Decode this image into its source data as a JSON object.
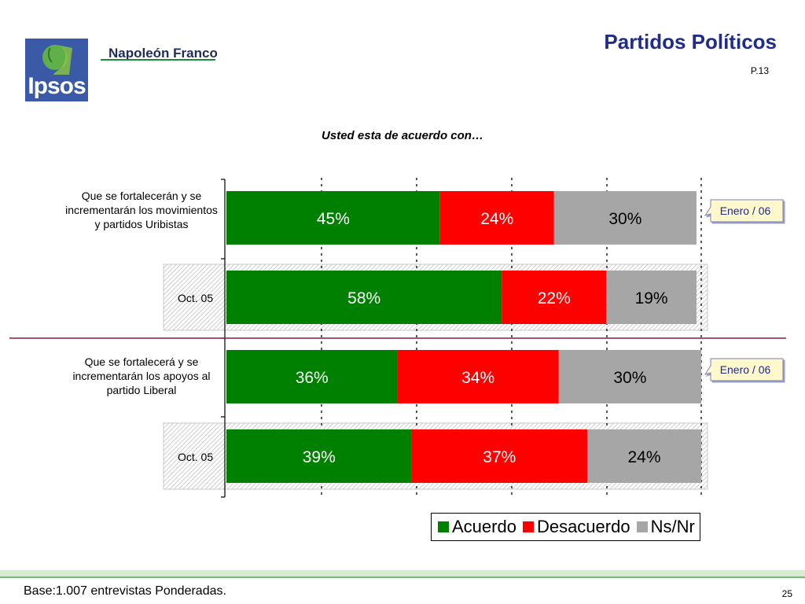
{
  "header": {
    "title": "Partidos Políticos",
    "page_ref": "P.13",
    "brand": "Napoleón Franco",
    "logo_text": "Ipsos"
  },
  "colors": {
    "acuerdo": "#008000",
    "desacuerdo": "#ff0000",
    "nsnr": "#a6a6a6",
    "title": "#1f2c8a",
    "callout": "#fff8cc"
  },
  "chart_data": {
    "type": "bar",
    "orientation": "horizontal",
    "stacked": true,
    "title": "Usted esta de acuerdo con…",
    "xlim": [
      0,
      100
    ],
    "legend_position": "bottom-right",
    "series_names": [
      "Acuerdo",
      "Desacuerdo",
      "Ns/Nr"
    ],
    "rows": [
      {
        "label": "Que se fortalecerán y se incrementarán los movimientos y partidos Uribistas",
        "callout": "Enero / 06",
        "values": [
          45,
          24,
          30
        ],
        "labels": [
          "45%",
          "24%",
          "30%"
        ]
      },
      {
        "label": "Oct. 05",
        "values": [
          58,
          22,
          19
        ],
        "labels": [
          "58%",
          "22%",
          "19%"
        ]
      },
      {
        "label": "Que se fortalecerá y se incrementarán los apoyos al partido Liberal",
        "callout": "Enero / 06",
        "values": [
          36,
          34,
          30
        ],
        "labels": [
          "36%",
          "34%",
          "30%"
        ]
      },
      {
        "label": "Oct. 05",
        "values": [
          39,
          37,
          24
        ],
        "labels": [
          "39%",
          "37%",
          "24%"
        ]
      }
    ]
  },
  "footer": {
    "note": "Base:1.007 entrevistas Ponderadas.",
    "page_number": "25"
  }
}
